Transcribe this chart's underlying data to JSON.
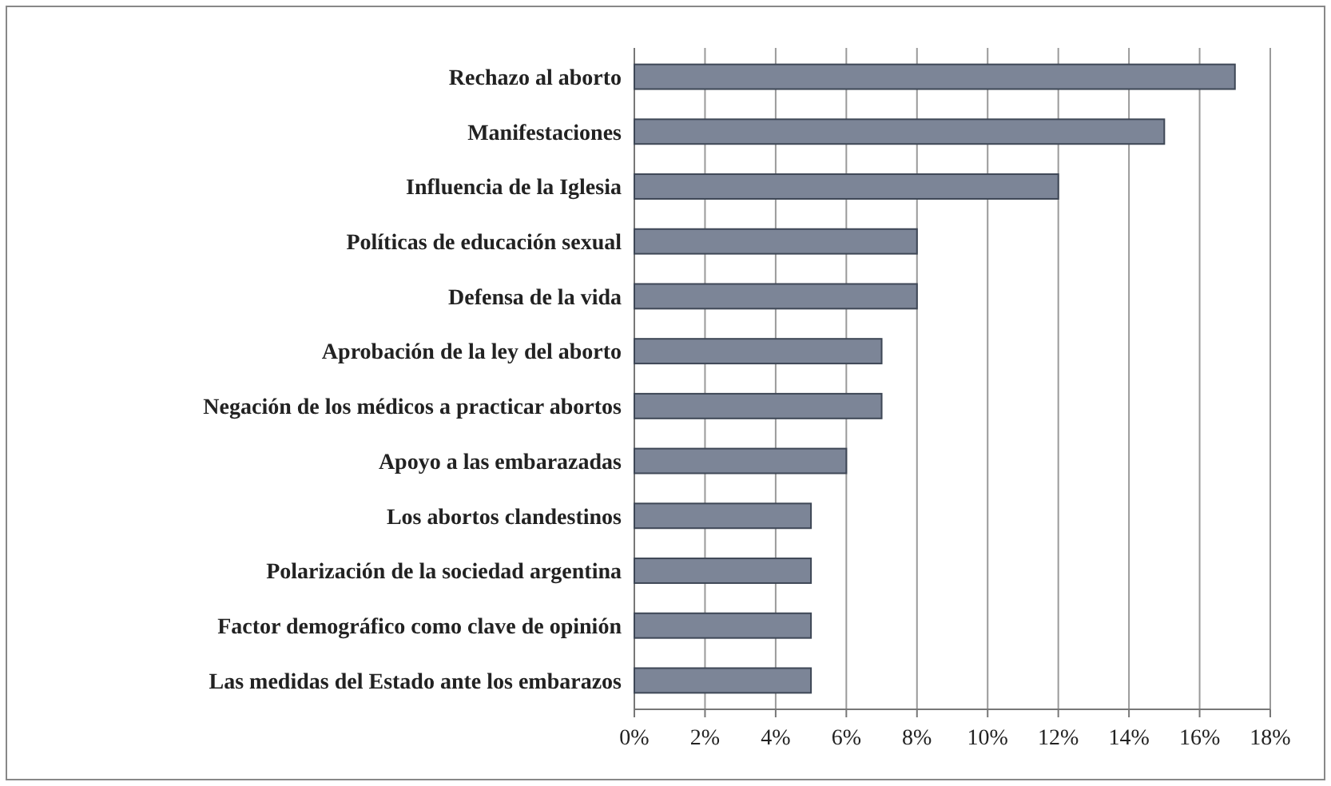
{
  "chart_data": {
    "type": "bar",
    "orientation": "horizontal",
    "categories": [
      "Rechazo al aborto",
      "Manifestaciones",
      "Influencia de la Iglesia",
      "Políticas de educación sexual",
      "Defensa de la vida",
      "Aprobación de la ley del aborto",
      "Negación de los médicos a practicar abortos",
      "Apoyo a las embarazadas",
      "Los abortos clandestinos",
      "Polarización de la sociedad argentina",
      "Factor demográfico como clave de opinión",
      "Las medidas del Estado ante los embarazos"
    ],
    "values": [
      17,
      15,
      12,
      8,
      8,
      7,
      7,
      6,
      5,
      5,
      5,
      5
    ],
    "color": "#7c8597",
    "xlim": [
      0,
      18
    ],
    "xticks": [
      {
        "value": 0,
        "label": "0%"
      },
      {
        "value": 2,
        "label": "2%"
      },
      {
        "value": 4,
        "label": "4%"
      },
      {
        "value": 6,
        "label": "6%"
      },
      {
        "value": 8,
        "label": "8%"
      },
      {
        "value": 10,
        "label": "10%"
      },
      {
        "value": 12,
        "label": "12%"
      },
      {
        "value": 14,
        "label": "14%"
      },
      {
        "value": 16,
        "label": "16%"
      },
      {
        "value": 18,
        "label": "18%"
      }
    ],
    "grid": "x"
  }
}
